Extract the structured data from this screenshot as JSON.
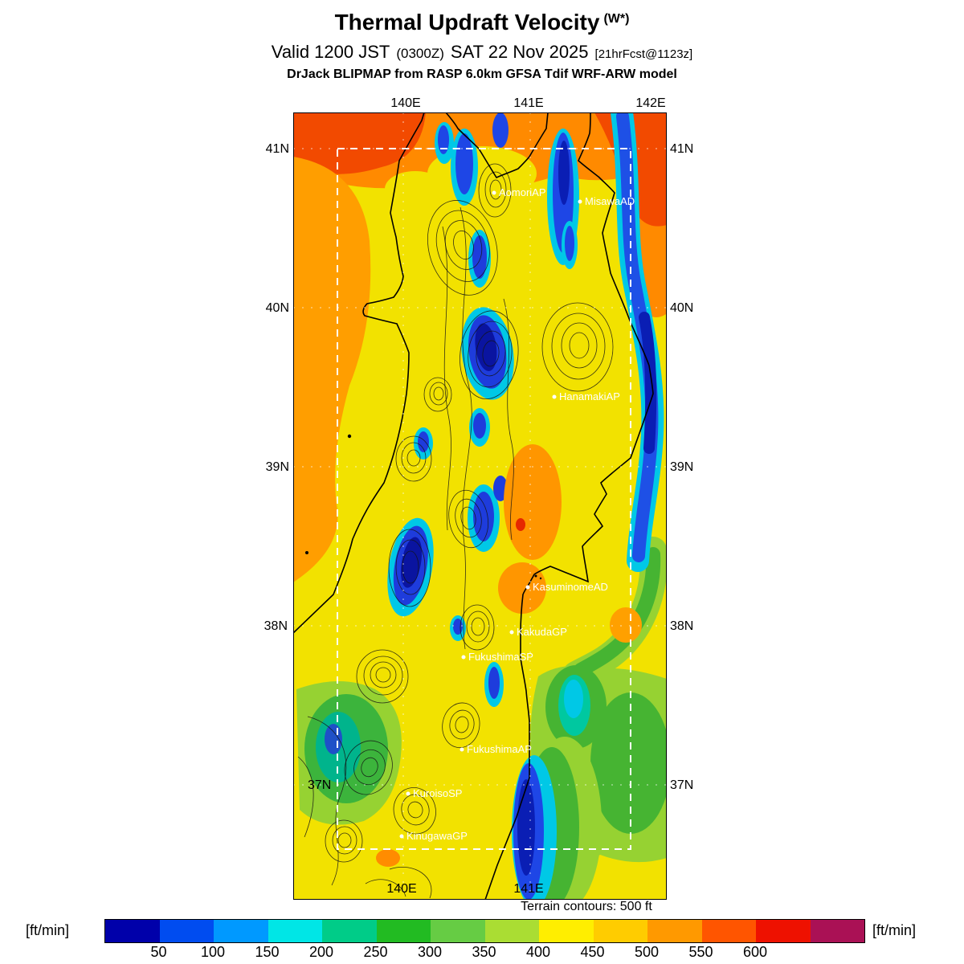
{
  "title": {
    "main": "Thermal Updraft Velocity",
    "sup": "(W*)"
  },
  "subtitle": {
    "valid": "Valid 1200 JST",
    "zulu": "(0300Z)",
    "date": "SAT 22 Nov 2025",
    "fcst": "[21hrFcst@1123z]"
  },
  "model_line": "DrJack BLIPMAP from RASP 6.0km GFSA Tdif WRF-ARW model",
  "axis": {
    "top": [
      "140E",
      "141E",
      "142E"
    ],
    "bottom": [
      "140E",
      "141E"
    ],
    "left": [
      "41N",
      "40N",
      "39N",
      "38N",
      "37N"
    ],
    "right": [
      "41N",
      "40N",
      "39N",
      "38N",
      "37N"
    ]
  },
  "stations": [
    {
      "name": "AomoriAP"
    },
    {
      "name": "MisawaAD"
    },
    {
      "name": "HanamakiAP"
    },
    {
      "name": "KasuminomeAD"
    },
    {
      "name": "KakudaGP"
    },
    {
      "name": "FukushimaSP"
    },
    {
      "name": "FukushimaAP"
    },
    {
      "name": "KuroisoSP"
    },
    {
      "name": "KinugawaGP"
    }
  ],
  "terrain_note": "Terrain contours: 500 ft",
  "colorbar": {
    "unit": "[ft/min]",
    "labels": [
      "50",
      "100",
      "150",
      "200",
      "250",
      "300",
      "350",
      "400",
      "450",
      "500",
      "550",
      "600"
    ],
    "colors": [
      "#0000aa",
      "#004cf0",
      "#0099ff",
      "#00e6e6",
      "#00cc88",
      "#22bb22",
      "#66cc44",
      "#aadd33",
      "#ffee00",
      "#ffcc00",
      "#ff9900",
      "#ff5500",
      "#ee1100",
      "#aa1155"
    ]
  },
  "map_colors": {
    "background_yellow": "#f2e200",
    "orange": "#ff9900",
    "red_orange": "#f24a00",
    "cyan": "#00c8e6",
    "blue": "#1e46e6",
    "dark_blue": "#0a1eb4",
    "green": "#46b432",
    "light_green": "#96d232",
    "teal": "#00b48c"
  }
}
